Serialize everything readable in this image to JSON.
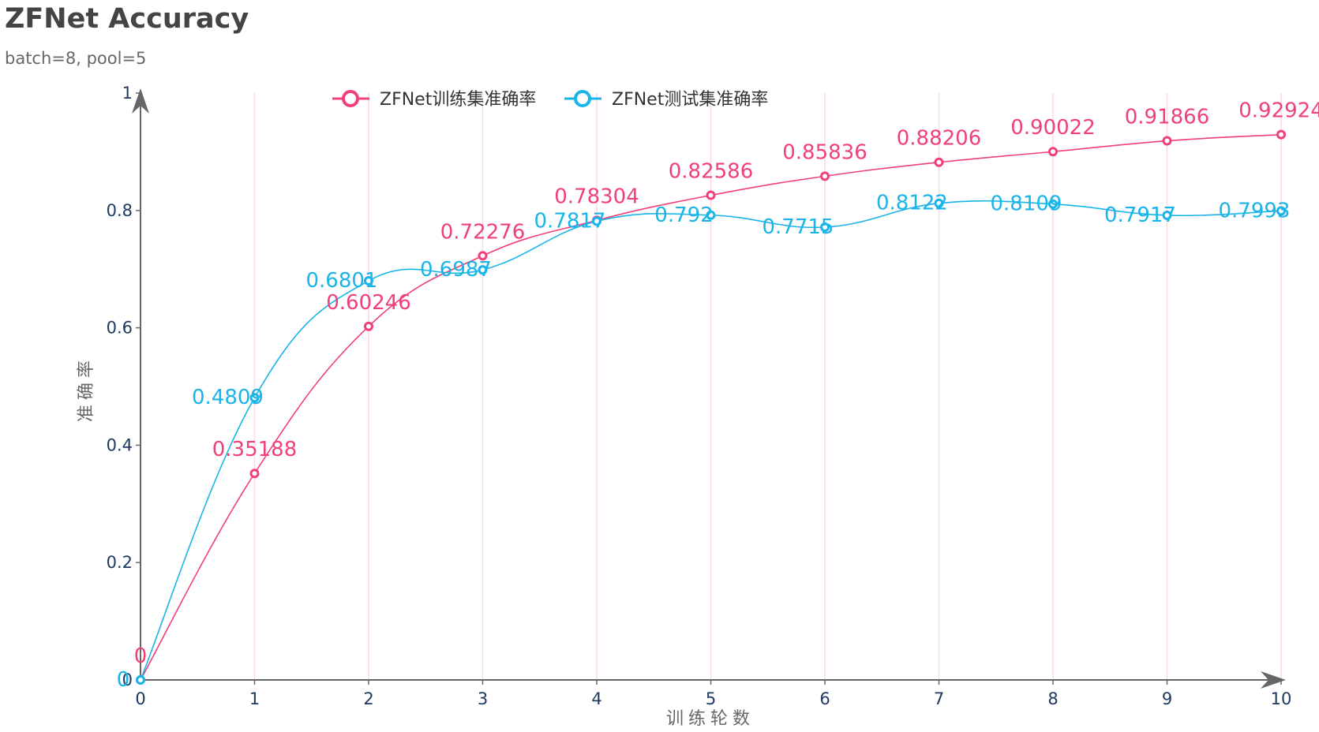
{
  "chart_data": {
    "type": "line",
    "title": "ZFNet Accuracy",
    "subtitle": "batch=8, pool=5",
    "xlabel": "训练轮数",
    "ylabel": "准确率",
    "x": [
      0,
      1,
      2,
      3,
      4,
      5,
      6,
      7,
      8,
      9,
      10
    ],
    "xlim": [
      0,
      10
    ],
    "ylim": [
      0,
      1
    ],
    "yticks": [
      "0",
      "0.2",
      "0.4",
      "0.6",
      "0.8",
      "1"
    ],
    "ytick_values": [
      0,
      0.2,
      0.4,
      0.6,
      0.8,
      1
    ],
    "grid": "vertical",
    "legend_position": "top-center",
    "smooth": true,
    "series": [
      {
        "name": "ZFNet训练集准确率",
        "color": "#f0407a",
        "values": [
          0,
          0.35188,
          0.60246,
          0.72276,
          0.78304,
          0.82586,
          0.85836,
          0.88206,
          0.90022,
          0.91866,
          0.92924
        ],
        "labels": [
          "0",
          "0.35188",
          "0.60246",
          "0.72276",
          "0.78304",
          "0.82586",
          "0.85836",
          "0.88206",
          "0.90022",
          "0.91866",
          "0.92924"
        ]
      },
      {
        "name": "ZFNet测试集准确率",
        "color": "#1ab4e8",
        "values": [
          0,
          0.4809,
          0.6801,
          0.6987,
          0.7817,
          0.792,
          0.7715,
          0.8122,
          0.8109,
          0.7917,
          0.7993
        ],
        "labels": [
          "0",
          "0.4809",
          "0.6801",
          "0.6987",
          "0.7817",
          "0.792",
          "0.7715",
          "0.8122",
          "0.8109",
          "0.7917",
          "0.7993"
        ]
      }
    ],
    "colors": {
      "axis": "#666666",
      "grid": "#fadbe0",
      "tick_text": "#1f3a60"
    }
  }
}
